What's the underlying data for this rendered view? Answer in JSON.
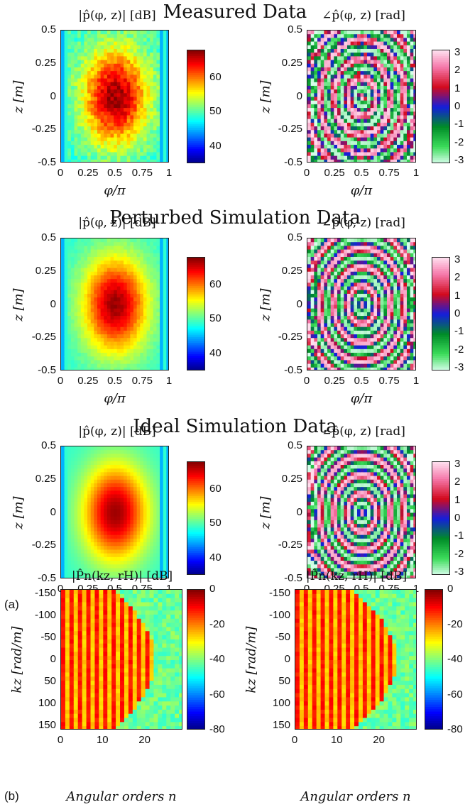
{
  "sections": [
    {
      "title": "Measured Data"
    },
    {
      "title": "Perturbed Simulation Data"
    },
    {
      "title": "Ideal Simulation Data"
    }
  ],
  "panel_labels": {
    "a": "(a)",
    "b": "(b)"
  },
  "chart_data": [
    {
      "type": "heatmap",
      "group": "Measured Data",
      "title": "|p̂(φ, z)| [dB]",
      "xlabel": "φ/π",
      "ylabel": "z [m]",
      "xlim": [
        0,
        1
      ],
      "ylim": [
        -0.5,
        0.5
      ],
      "xticks": [
        "0",
        "0.25",
        "0.5",
        "0.75",
        "1"
      ],
      "yticks": [
        "0.5",
        "0.25",
        "0",
        "-0.25",
        "-0.5"
      ],
      "colorbar": {
        "ticks": [
          "60",
          "50",
          "40"
        ],
        "colormap": "jet",
        "range": [
          35,
          68
        ]
      },
      "peak": {
        "x": 0.5,
        "y": 0,
        "value": 68
      }
    },
    {
      "type": "heatmap",
      "group": "Measured Data",
      "title": "∠p̂(φ, z) [rad]",
      "xlabel": "φ/π",
      "ylabel": "z [m]",
      "xlim": [
        0,
        1
      ],
      "ylim": [
        -0.5,
        0.5
      ],
      "xticks": [
        "0",
        "0.25",
        "0.5",
        "0.75",
        "1"
      ],
      "yticks": [
        "0.5",
        "0.25",
        "0",
        "-0.25",
        "-0.5"
      ],
      "colorbar": {
        "ticks": [
          "3",
          "2",
          "1",
          "0",
          "-1",
          "-2",
          "-3"
        ],
        "colormap": "phase",
        "range": [
          -3.14,
          3.14
        ]
      }
    },
    {
      "type": "heatmap",
      "group": "Perturbed Simulation Data",
      "title": "|p̂(φ, z)| [dB]",
      "xlabel": "φ/π",
      "ylabel": "z [m]",
      "xlim": [
        0,
        1
      ],
      "ylim": [
        -0.5,
        0.5
      ],
      "xticks": [
        "0",
        "0.25",
        "0.5",
        "0.75",
        "1"
      ],
      "yticks": [
        "0.5",
        "0.25",
        "0",
        "-0.25",
        "-0.5"
      ],
      "colorbar": {
        "ticks": [
          "60",
          "50",
          "40"
        ],
        "colormap": "jet",
        "range": [
          35,
          68
        ]
      }
    },
    {
      "type": "heatmap",
      "group": "Perturbed Simulation Data",
      "title": "∠p̂(φ, z) [rad]",
      "xlabel": "φ/π",
      "ylabel": "z [m]",
      "xlim": [
        0,
        1
      ],
      "ylim": [
        -0.5,
        0.5
      ],
      "xticks": [
        "0",
        "0.25",
        "0.5",
        "0.75",
        "1"
      ],
      "yticks": [
        "0.5",
        "0.25",
        "0",
        "-0.25",
        "-0.5"
      ],
      "colorbar": {
        "ticks": [
          "3",
          "2",
          "1",
          "0",
          "-1",
          "-2",
          "-3"
        ],
        "colormap": "phase",
        "range": [
          -3.14,
          3.14
        ]
      }
    },
    {
      "type": "heatmap",
      "group": "Ideal Simulation Data",
      "title": "|p̂(φ, z)| [dB]",
      "xlabel": "φ/π",
      "ylabel": "z [m]",
      "xlim": [
        0,
        1
      ],
      "ylim": [
        -0.5,
        0.5
      ],
      "xticks": [
        "0",
        "0.25",
        "0.5",
        "0.75",
        "1"
      ],
      "yticks": [
        "0.5",
        "0.25",
        "0",
        "-0.25",
        "-0.5"
      ],
      "colorbar": {
        "ticks": [
          "60",
          "50",
          "40"
        ],
        "colormap": "jet",
        "range": [
          35,
          68
        ]
      }
    },
    {
      "type": "heatmap",
      "group": "Ideal Simulation Data",
      "title": "∠p̂(φ, z) [rad]",
      "xlabel": "φ/π",
      "ylabel": "z [m]",
      "xlim": [
        0,
        1
      ],
      "ylim": [
        -0.5,
        0.5
      ],
      "xticks": [
        "0",
        "0.25",
        "0.5",
        "0.75",
        "1"
      ],
      "yticks": [
        "0.5",
        "0.25",
        "0",
        "-0.25",
        "-0.5"
      ],
      "colorbar": {
        "ticks": [
          "3",
          "2",
          "1",
          "0",
          "-1",
          "-2",
          "-3"
        ],
        "colormap": "phase",
        "range": [
          -3.14,
          3.14
        ]
      }
    },
    {
      "type": "heatmap",
      "group": "(b)",
      "title": "|P̂n(kz, rH)| [dB]",
      "xlabel": "Angular orders n",
      "ylabel": "kz [rad/m]",
      "xlim": [
        0,
        29
      ],
      "ylim": [
        -150,
        150
      ],
      "xticks": [
        "0",
        "10",
        "20"
      ],
      "yticks": [
        "-150",
        "-100",
        "-50",
        "0",
        "50",
        "100",
        "150"
      ],
      "colorbar": {
        "ticks": [
          "0",
          "-20",
          "-40",
          "-60",
          "-80"
        ],
        "colormap": "jet",
        "range": [
          -80,
          0
        ]
      }
    },
    {
      "type": "heatmap",
      "group": "(b)",
      "title": "|P̂n(kz, rH)| [dB]",
      "xlabel": "Angular orders n",
      "ylabel": "kz [rad/m]",
      "xlim": [
        0,
        29
      ],
      "ylim": [
        -150,
        150
      ],
      "xticks": [
        "0",
        "10",
        "20"
      ],
      "yticks": [
        "-150",
        "-100",
        "-50",
        "0",
        "50",
        "100",
        "150"
      ],
      "colorbar": {
        "ticks": [
          "0",
          "-20",
          "-40",
          "-60",
          "-80"
        ],
        "colormap": "jet",
        "range": [
          -80,
          0
        ]
      }
    }
  ]
}
